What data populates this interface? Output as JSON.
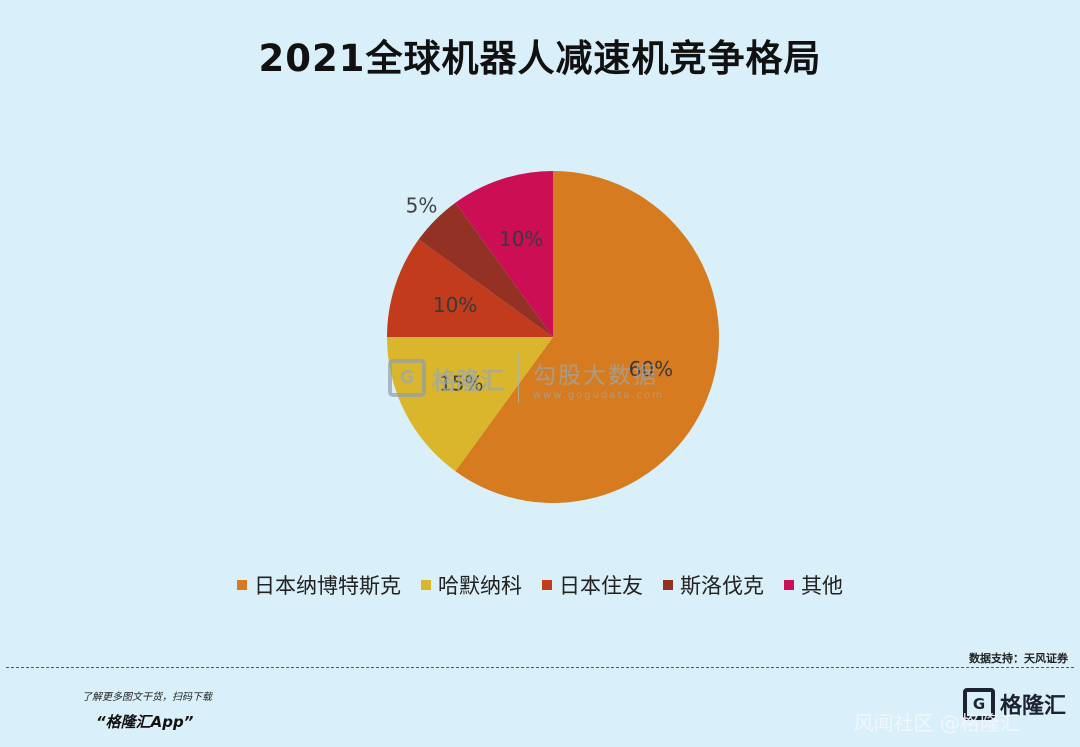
{
  "title": "2021全球机器人减速机竞争格局",
  "chart_data": {
    "type": "pie",
    "title": "2021全球机器人减速机竞争格局",
    "legend_position": "bottom",
    "slices": [
      {
        "label": "日本纳博特斯克",
        "value": 60,
        "value_label": "60%",
        "color": "#d67b1f"
      },
      {
        "label": "哈默纳科",
        "value": 15,
        "value_label": "15%",
        "color": "#d9b62c"
      },
      {
        "label": "日本住友",
        "value": 10,
        "value_label": "10%",
        "color": "#c23b1c"
      },
      {
        "label": "斯洛伐克",
        "value": 5,
        "value_label": "5%",
        "color": "#933224"
      },
      {
        "label": "其他",
        "value": 10,
        "value_label": "10%",
        "color": "#cc0e55"
      }
    ]
  },
  "watermark": {
    "logo_glyph": "G",
    "name": "格隆汇",
    "right_name": "勾股大数据",
    "url": "www.gogudata.com"
  },
  "source": "数据支持：天风证券",
  "promo": {
    "line": "了解更多图文干货，扫码下载",
    "app": "“格隆汇App”"
  },
  "footer_logo": {
    "glyph": "G",
    "name": "格隆汇"
  },
  "overlay_text": "风闻社区 @格隆汇"
}
